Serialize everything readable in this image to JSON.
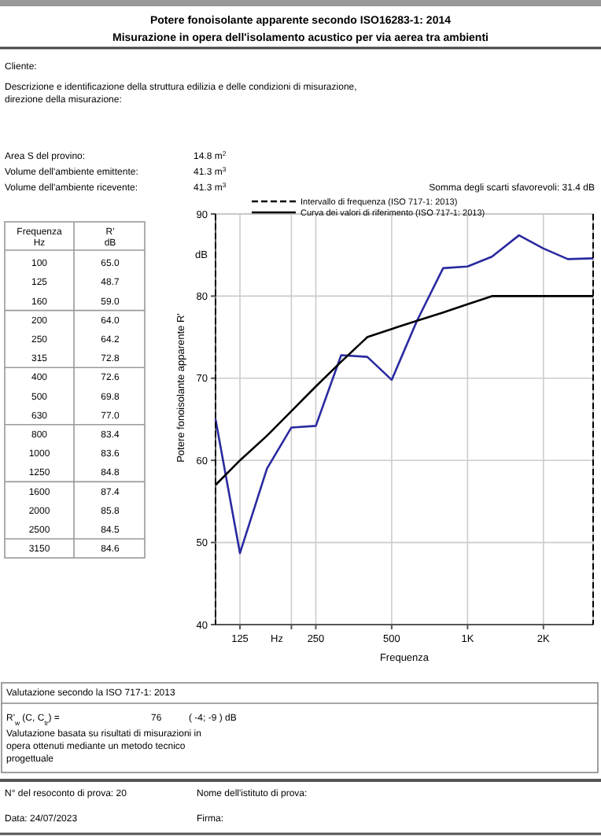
{
  "chart_data": [
    {
      "type": "line",
      "title": "Potere fonoisolante apparente secondo ISO16283-1: 2014",
      "subtitle": "Misurazione in opera dell'isolamento acustico per via aerea tra ambienti",
      "xlabel": "Frequenza",
      "ylabel": "Potere fonoisolante apparente R'",
      "x": [
        100,
        125,
        160,
        200,
        250,
        315,
        400,
        500,
        630,
        800,
        1000,
        1250,
        1600,
        2000,
        2500,
        3150
      ],
      "series": [
        {
          "color": "#2a2aa0",
          "values": [
            65.0,
            48.7,
            59.0,
            64.0,
            64.2,
            72.8,
            72.6,
            69.8,
            77.0,
            83.4,
            83.6,
            84.8,
            87.4,
            85.8,
            84.5,
            84.6
          ]
        },
        {
          "name": "Curva dei valori di riferimento (ISO 717-1: 2013)",
          "color": "#000000",
          "values": [
            57,
            60,
            63,
            66,
            69,
            72,
            75,
            76,
            77,
            78,
            79,
            80,
            80,
            80,
            80,
            80
          ]
        }
      ],
      "log": "x",
      "xlim": [
        100,
        3150
      ],
      "xticks": [
        125,
        {
          "value": 200,
          "label": null
        },
        250,
        500,
        {
          "value": 1000,
          "label": "1K"
        },
        {
          "value": 2000,
          "label": "2K"
        }
      ],
      "ylim": [
        40,
        90
      ],
      "yticks": [
        40,
        50,
        60,
        70,
        80,
        90
      ],
      "grid": true,
      "legend": "top left",
      "line_style": "solid",
      "marker": "none",
      "ref_lines": [
        {
          "axis": "x",
          "value": 100,
          "line_style": "dashed",
          "color": "#000000"
        },
        {
          "axis": "x",
          "value": 3150,
          "line_style": "dashed",
          "color": "#000000"
        }
      ],
      "annotations": [
        "Intervallo di frequenza (ISO 717-1: 2013)",
        "Cliente:",
        "Descrizione e identificazione della struttura edilizia e delle condizioni di misurazione,",
        "direzione della misurazione:",
        "Area S del provino:",
        "14.8 m$^{2}$",
        "Volume dell'ambiente emittente:",
        "41.3 m$^{3}$",
        "Volume dell'ambiente ricevente:",
        "41.3 m$^{3}$",
        "Somma degli scarti sfavorevoli: 31.4 dB",
        "dB",
        "Hz",
        "Valutazione secondo la ISO 717-1: 2013",
        "R'$_{w}$ (C, C$_{tr}$) =",
        "76",
        "( -4; -9 ) dB",
        "Valutazione basata su risultati di misurazioni in",
        "opera ottenuti mediante un metodo tecnico",
        "progettuale",
        "N° del resoconto di prova: 20",
        "Nome dell'istituto di prova:",
        "Data: 24/07/2023",
        "Firma:"
      ]
    },
    {
      "type": "other",
      "annotations": [
        "Frequenza",
        "Hz",
        "R'",
        "dB",
        "100",
        "65.0",
        "125",
        "48.7",
        "160",
        "59.0",
        "200",
        "64.0",
        "250",
        "64.2",
        "315",
        "72.8",
        "400",
        "72.6",
        "500",
        "69.8",
        "630",
        "77.0",
        "800",
        "83.4",
        "1000",
        "83.6",
        "1250",
        "84.8",
        "1600",
        "87.4",
        "2000",
        "85.8",
        "2500",
        "84.5",
        "3150",
        "84.6"
      ]
    }
  ]
}
